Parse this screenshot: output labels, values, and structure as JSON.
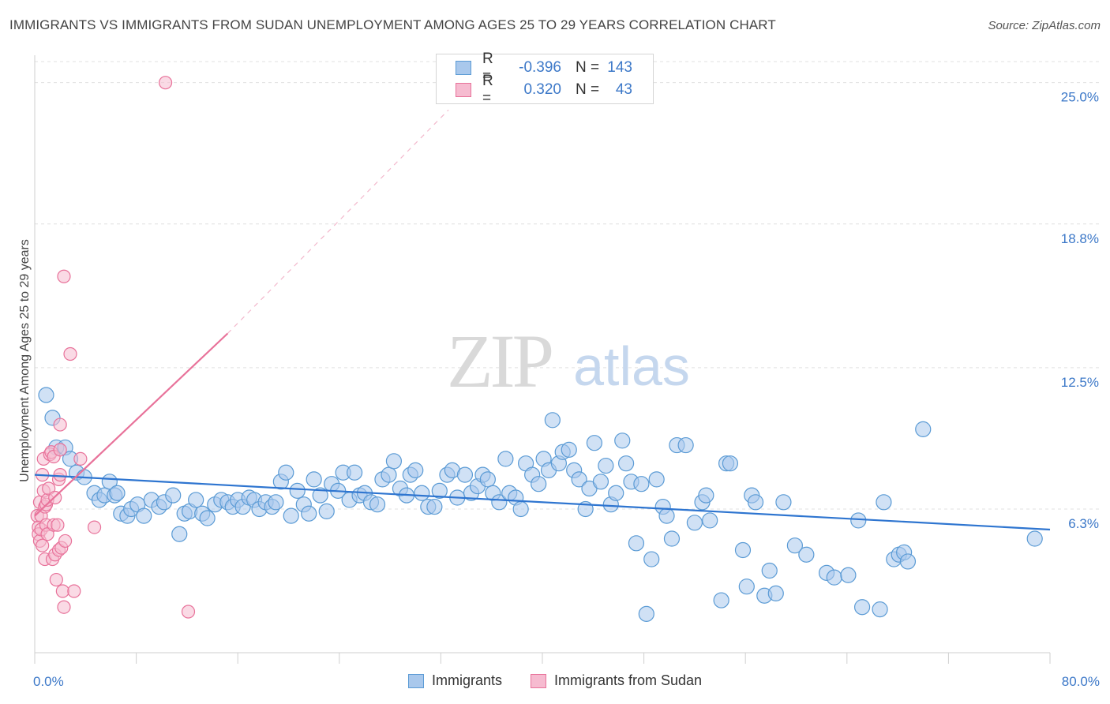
{
  "title": "IMMIGRANTS VS IMMIGRANTS FROM SUDAN UNEMPLOYMENT AMONG AGES 25 TO 29 YEARS CORRELATION CHART",
  "source": "Source: ZipAtlas.com",
  "watermark": {
    "zip": "ZIP",
    "atlas": "atlas"
  },
  "colors": {
    "blue": "#5b9bd5",
    "blue_fill": "#a9c8ec",
    "blue_line": "#2e75d0",
    "pink": "#e8729a",
    "pink_fill": "#f6bbd0",
    "accent_text": "#3c78c8"
  },
  "legend": {
    "rows": [
      {
        "r_label": "R =",
        "r_value": "-0.396",
        "n_label": "N =",
        "n_value": "143"
      },
      {
        "r_label": "R =",
        "r_value": "0.320",
        "n_label": "N =",
        "n_value": "43"
      }
    ]
  },
  "bottom_legend": [
    "Immigrants",
    "Immigrants from Sudan"
  ],
  "chart_data": {
    "type": "scatter",
    "title": "IMMIGRANTS VS IMMIGRANTS FROM SUDAN UNEMPLOYMENT AMONG AGES 25 TO 29 YEARS CORRELATION CHART",
    "xlabel": "",
    "ylabel": "Unemployment Among Ages 25 to 29 years",
    "xlim": [
      0,
      80
    ],
    "ylim": [
      0,
      26.2
    ],
    "x_tick_labels": [
      "0.0%",
      "80.0%"
    ],
    "y_ticks": [
      6.3,
      12.5,
      18.8,
      25.0
    ],
    "y_tick_labels": [
      "6.3%",
      "12.5%",
      "18.8%",
      "25.0%"
    ],
    "grid": true,
    "legend_position": "top-center",
    "series": [
      {
        "name": "Immigrants",
        "color": "#5b9bd5",
        "trend": {
          "x": [
            0,
            80
          ],
          "y": [
            7.8,
            5.4
          ]
        },
        "points": [
          [
            0.9,
            11.3
          ],
          [
            1.4,
            10.3
          ],
          [
            1.7,
            9.0
          ],
          [
            2.4,
            9.0
          ],
          [
            2.8,
            8.5
          ],
          [
            3.3,
            7.9
          ],
          [
            3.9,
            7.7
          ],
          [
            4.7,
            7.0
          ],
          [
            5.1,
            6.7
          ],
          [
            5.5,
            6.9
          ],
          [
            5.9,
            7.5
          ],
          [
            6.3,
            6.9
          ],
          [
            6.5,
            7.0
          ],
          [
            6.8,
            6.1
          ],
          [
            7.3,
            6.0
          ],
          [
            7.6,
            6.3
          ],
          [
            8.1,
            6.5
          ],
          [
            8.6,
            6.0
          ],
          [
            9.2,
            6.7
          ],
          [
            9.8,
            6.4
          ],
          [
            10.2,
            6.6
          ],
          [
            10.9,
            6.9
          ],
          [
            11.4,
            5.2
          ],
          [
            11.8,
            6.1
          ],
          [
            12.2,
            6.2
          ],
          [
            12.7,
            6.7
          ],
          [
            13.2,
            6.1
          ],
          [
            13.6,
            5.9
          ],
          [
            14.2,
            6.5
          ],
          [
            14.7,
            6.7
          ],
          [
            15.2,
            6.6
          ],
          [
            15.6,
            6.4
          ],
          [
            16.0,
            6.7
          ],
          [
            16.4,
            6.4
          ],
          [
            16.9,
            6.8
          ],
          [
            17.3,
            6.7
          ],
          [
            17.7,
            6.3
          ],
          [
            18.2,
            6.6
          ],
          [
            18.7,
            6.4
          ],
          [
            19.0,
            6.6
          ],
          [
            19.4,
            7.5
          ],
          [
            19.8,
            7.9
          ],
          [
            20.2,
            6.0
          ],
          [
            20.7,
            7.1
          ],
          [
            21.2,
            6.5
          ],
          [
            21.6,
            6.1
          ],
          [
            22.0,
            7.6
          ],
          [
            22.5,
            6.9
          ],
          [
            23.0,
            6.2
          ],
          [
            23.4,
            7.4
          ],
          [
            23.9,
            7.1
          ],
          [
            24.3,
            7.9
          ],
          [
            24.8,
            6.7
          ],
          [
            25.2,
            7.9
          ],
          [
            25.6,
            6.9
          ],
          [
            26.0,
            7.0
          ],
          [
            26.5,
            6.6
          ],
          [
            27.0,
            6.5
          ],
          [
            27.4,
            7.6
          ],
          [
            27.9,
            7.8
          ],
          [
            28.3,
            8.4
          ],
          [
            28.8,
            7.2
          ],
          [
            29.3,
            6.9
          ],
          [
            29.6,
            7.8
          ],
          [
            30.0,
            8.0
          ],
          [
            30.5,
            7.0
          ],
          [
            31.0,
            6.4
          ],
          [
            31.5,
            6.4
          ],
          [
            31.9,
            7.1
          ],
          [
            32.5,
            7.8
          ],
          [
            32.9,
            8.0
          ],
          [
            33.3,
            6.8
          ],
          [
            33.9,
            7.8
          ],
          [
            34.4,
            7.0
          ],
          [
            34.9,
            7.3
          ],
          [
            35.3,
            7.8
          ],
          [
            35.7,
            7.6
          ],
          [
            36.1,
            7.0
          ],
          [
            36.6,
            6.6
          ],
          [
            37.1,
            8.5
          ],
          [
            37.4,
            7.0
          ],
          [
            37.9,
            6.8
          ],
          [
            38.3,
            6.3
          ],
          [
            38.7,
            8.3
          ],
          [
            39.2,
            7.8
          ],
          [
            39.7,
            7.4
          ],
          [
            40.1,
            8.5
          ],
          [
            40.5,
            8.0
          ],
          [
            40.8,
            10.2
          ],
          [
            41.3,
            8.3
          ],
          [
            41.6,
            8.8
          ],
          [
            42.1,
            8.9
          ],
          [
            42.5,
            8.0
          ],
          [
            42.9,
            7.6
          ],
          [
            43.4,
            6.3
          ],
          [
            43.7,
            7.2
          ],
          [
            44.1,
            9.2
          ],
          [
            44.6,
            7.5
          ],
          [
            45.0,
            8.2
          ],
          [
            45.4,
            6.5
          ],
          [
            45.8,
            7.0
          ],
          [
            46.3,
            9.3
          ],
          [
            46.6,
            8.3
          ],
          [
            47.0,
            7.5
          ],
          [
            47.4,
            4.8
          ],
          [
            47.8,
            7.4
          ],
          [
            48.2,
            1.7
          ],
          [
            48.6,
            4.1
          ],
          [
            49.0,
            7.6
          ],
          [
            49.5,
            6.4
          ],
          [
            49.8,
            6.0
          ],
          [
            50.2,
            5.0
          ],
          [
            50.6,
            9.1
          ],
          [
            51.3,
            9.1
          ],
          [
            52.0,
            5.7
          ],
          [
            52.6,
            6.6
          ],
          [
            52.9,
            6.9
          ],
          [
            53.2,
            5.8
          ],
          [
            54.1,
            2.3
          ],
          [
            54.5,
            8.3
          ],
          [
            54.8,
            8.3
          ],
          [
            55.8,
            4.5
          ],
          [
            56.1,
            2.9
          ],
          [
            56.5,
            6.9
          ],
          [
            56.8,
            6.6
          ],
          [
            57.5,
            2.5
          ],
          [
            57.9,
            3.6
          ],
          [
            58.4,
            2.6
          ],
          [
            59.0,
            6.6
          ],
          [
            59.9,
            4.7
          ],
          [
            60.8,
            4.3
          ],
          [
            62.4,
            3.5
          ],
          [
            63.0,
            3.3
          ],
          [
            64.1,
            3.4
          ],
          [
            64.9,
            5.8
          ],
          [
            65.2,
            2.0
          ],
          [
            66.6,
            1.9
          ],
          [
            66.9,
            6.6
          ],
          [
            67.7,
            4.1
          ],
          [
            68.1,
            4.3
          ],
          [
            68.5,
            4.4
          ],
          [
            68.8,
            4.0
          ],
          [
            70.0,
            9.8
          ],
          [
            78.8,
            5.0
          ]
        ]
      },
      {
        "name": "Immigrants from Sudan",
        "color": "#e8729a",
        "trend": {
          "x": [
            0,
            15.2
          ],
          "y": [
            6.0,
            14.0
          ]
        },
        "trend_extension": {
          "x": [
            15.2,
            32.6
          ],
          "y": [
            14.0,
            23.8
          ]
        },
        "points": [
          [
            0.2,
            6.0
          ],
          [
            0.3,
            5.5
          ],
          [
            0.3,
            5.2
          ],
          [
            0.4,
            4.9
          ],
          [
            0.4,
            6.6
          ],
          [
            0.5,
            5.4
          ],
          [
            0.5,
            6.0
          ],
          [
            0.6,
            4.7
          ],
          [
            0.6,
            7.8
          ],
          [
            0.7,
            7.1
          ],
          [
            0.7,
            8.5
          ],
          [
            0.8,
            6.4
          ],
          [
            0.8,
            4.1
          ],
          [
            0.9,
            5.6
          ],
          [
            0.9,
            6.5
          ],
          [
            1.0,
            5.2
          ],
          [
            1.0,
            6.7
          ],
          [
            1.1,
            7.2
          ],
          [
            1.2,
            8.7
          ],
          [
            1.3,
            8.8
          ],
          [
            1.4,
            4.1
          ],
          [
            1.5,
            5.6
          ],
          [
            1.5,
            8.6
          ],
          [
            1.6,
            6.8
          ],
          [
            1.6,
            4.3
          ],
          [
            1.7,
            3.2
          ],
          [
            1.8,
            5.6
          ],
          [
            1.9,
            4.5
          ],
          [
            1.9,
            7.6
          ],
          [
            2.0,
            8.9
          ],
          [
            2.0,
            7.8
          ],
          [
            2.0,
            10.0
          ],
          [
            2.1,
            4.6
          ],
          [
            2.2,
            2.7
          ],
          [
            2.3,
            2.0
          ],
          [
            2.3,
            16.5
          ],
          [
            2.4,
            4.9
          ],
          [
            2.8,
            13.1
          ],
          [
            3.1,
            2.7
          ],
          [
            3.6,
            8.5
          ],
          [
            4.7,
            5.5
          ],
          [
            10.3,
            25.0
          ],
          [
            12.1,
            1.8
          ]
        ]
      }
    ]
  }
}
